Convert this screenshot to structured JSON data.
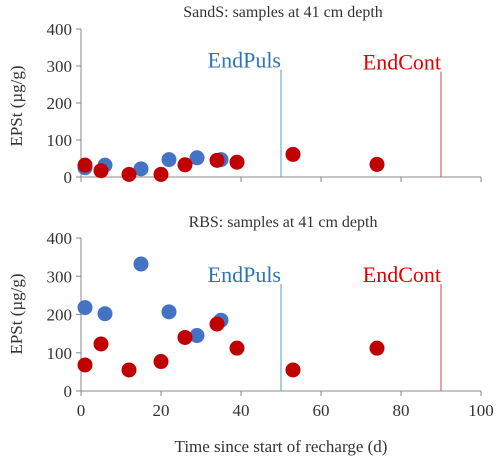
{
  "chart_data": [
    {
      "type": "scatter",
      "title": "SandS: samples at 41 cm depth",
      "xlabel": "",
      "ylabel": "EPSt (µg/g)",
      "xlim": [
        0,
        100
      ],
      "ylim": [
        0,
        400
      ],
      "x_ticks": [],
      "y_ticks": [
        0,
        100,
        200,
        300,
        400
      ],
      "grid": false,
      "series": [
        {
          "color": "#4472C4",
          "points": [
            [
              1,
              25
            ],
            [
              6,
              32
            ],
            [
              15,
              22
            ],
            [
              22,
              47
            ],
            [
              29,
              52
            ],
            [
              35,
              47
            ]
          ]
        },
        {
          "color": "#C00000",
          "points": [
            [
              1,
              32
            ],
            [
              5,
              17
            ],
            [
              12,
              7
            ],
            [
              20,
              7
            ],
            [
              26,
              33
            ],
            [
              34,
              45
            ],
            [
              39,
              40
            ],
            [
              53,
              61
            ],
            [
              74,
              34
            ]
          ]
        }
      ],
      "markers": [
        {
          "label": "EndPuls",
          "x": 50,
          "color": "#2E75B6",
          "line_color": "#6BAED6",
          "line_top": 290
        },
        {
          "label": "EndCont",
          "x": 90,
          "color": "#E00000",
          "line_color": "#E06060",
          "line_top": 285
        }
      ]
    },
    {
      "type": "scatter",
      "title": "RBS: samples at 41 cm depth",
      "xlabel": "Time since start of recharge (d)",
      "ylabel": "EPSt (µg/g)",
      "xlim": [
        0,
        100
      ],
      "ylim": [
        0,
        400
      ],
      "x_ticks": [
        0,
        20,
        40,
        60,
        80,
        100
      ],
      "y_ticks": [
        0,
        100,
        200,
        300,
        400
      ],
      "grid": false,
      "series": [
        {
          "color": "#4472C4",
          "points": [
            [
              1,
              218
            ],
            [
              6,
              202
            ],
            [
              15,
              332
            ],
            [
              22,
              207
            ],
            [
              29,
              145
            ],
            [
              35,
              185
            ]
          ]
        },
        {
          "color": "#C00000",
          "points": [
            [
              1,
              68
            ],
            [
              5,
              123
            ],
            [
              12,
              55
            ],
            [
              20,
              77
            ],
            [
              26,
              140
            ],
            [
              34,
              175
            ],
            [
              39,
              112
            ],
            [
              53,
              55
            ],
            [
              74,
              112
            ]
          ]
        }
      ],
      "markers": [
        {
          "label": "EndPuls",
          "x": 50,
          "color": "#2E75B6",
          "line_color": "#6BAED6",
          "line_top": 280
        },
        {
          "label": "EndCont",
          "x": 90,
          "color": "#E00000",
          "line_color": "#E06060",
          "line_top": 280
        }
      ]
    }
  ]
}
